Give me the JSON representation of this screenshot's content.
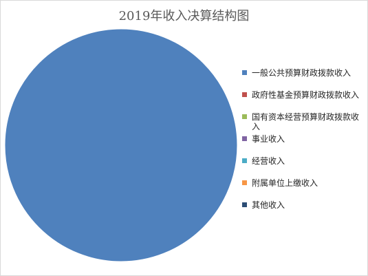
{
  "chart_data": {
    "type": "pie",
    "title": "2019年收入决算结构图",
    "legend_position": "right",
    "categories": [
      "一般公共预算财政拨款收入",
      "政府性基金预算财政拨款收入",
      "国有资本经营预算财政拨款收入",
      "事业收入",
      "经营收入",
      "附属单位上缴收入",
      "其他收入"
    ],
    "values": [
      100,
      0,
      0,
      0,
      0,
      0,
      0
    ],
    "colors": [
      "#4f81bd",
      "#c0504d",
      "#9bbb59",
      "#8064a2",
      "#4bacc6",
      "#f79646",
      "#2c4d75"
    ]
  }
}
